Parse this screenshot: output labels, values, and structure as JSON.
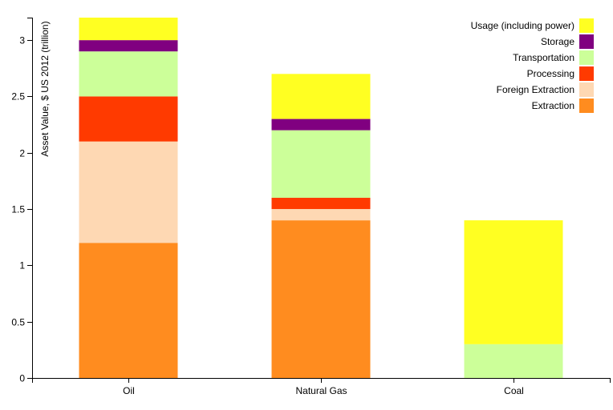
{
  "chart_data": {
    "type": "bar",
    "stacked": true,
    "categories": [
      "Oil",
      "Natural Gas",
      "Coal"
    ],
    "ylabel": "Asset Value, $ US 2012 (trillion)",
    "ylim": [
      0,
      3.2
    ],
    "yticks": [
      0,
      0.5,
      1,
      1.5,
      2,
      2.5,
      3
    ],
    "ytick_labels": [
      "0",
      "0.5",
      "1",
      "1.5",
      "2",
      "2.5",
      "3"
    ],
    "legend_position": "top-right",
    "grid": false,
    "series": [
      {
        "name": "Extraction",
        "color": "#ff8c1f",
        "values": [
          1.2,
          1.4,
          0
        ]
      },
      {
        "name": "Foreign Extraction",
        "color": "#fed8b3",
        "values": [
          0.9,
          0.1,
          0
        ]
      },
      {
        "name": "Processing",
        "color": "#ff3a00",
        "values": [
          0.4,
          0.1,
          0
        ]
      },
      {
        "name": "Transportation",
        "color": "#ccff99",
        "values": [
          0.4,
          0.6,
          0.3
        ]
      },
      {
        "name": "Storage",
        "color": "#800080",
        "values": [
          0.1,
          0.1,
          0
        ]
      },
      {
        "name": "Usage (including power)",
        "color": "#ffff22",
        "values": [
          0.2,
          0.4,
          1.1
        ]
      }
    ]
  }
}
